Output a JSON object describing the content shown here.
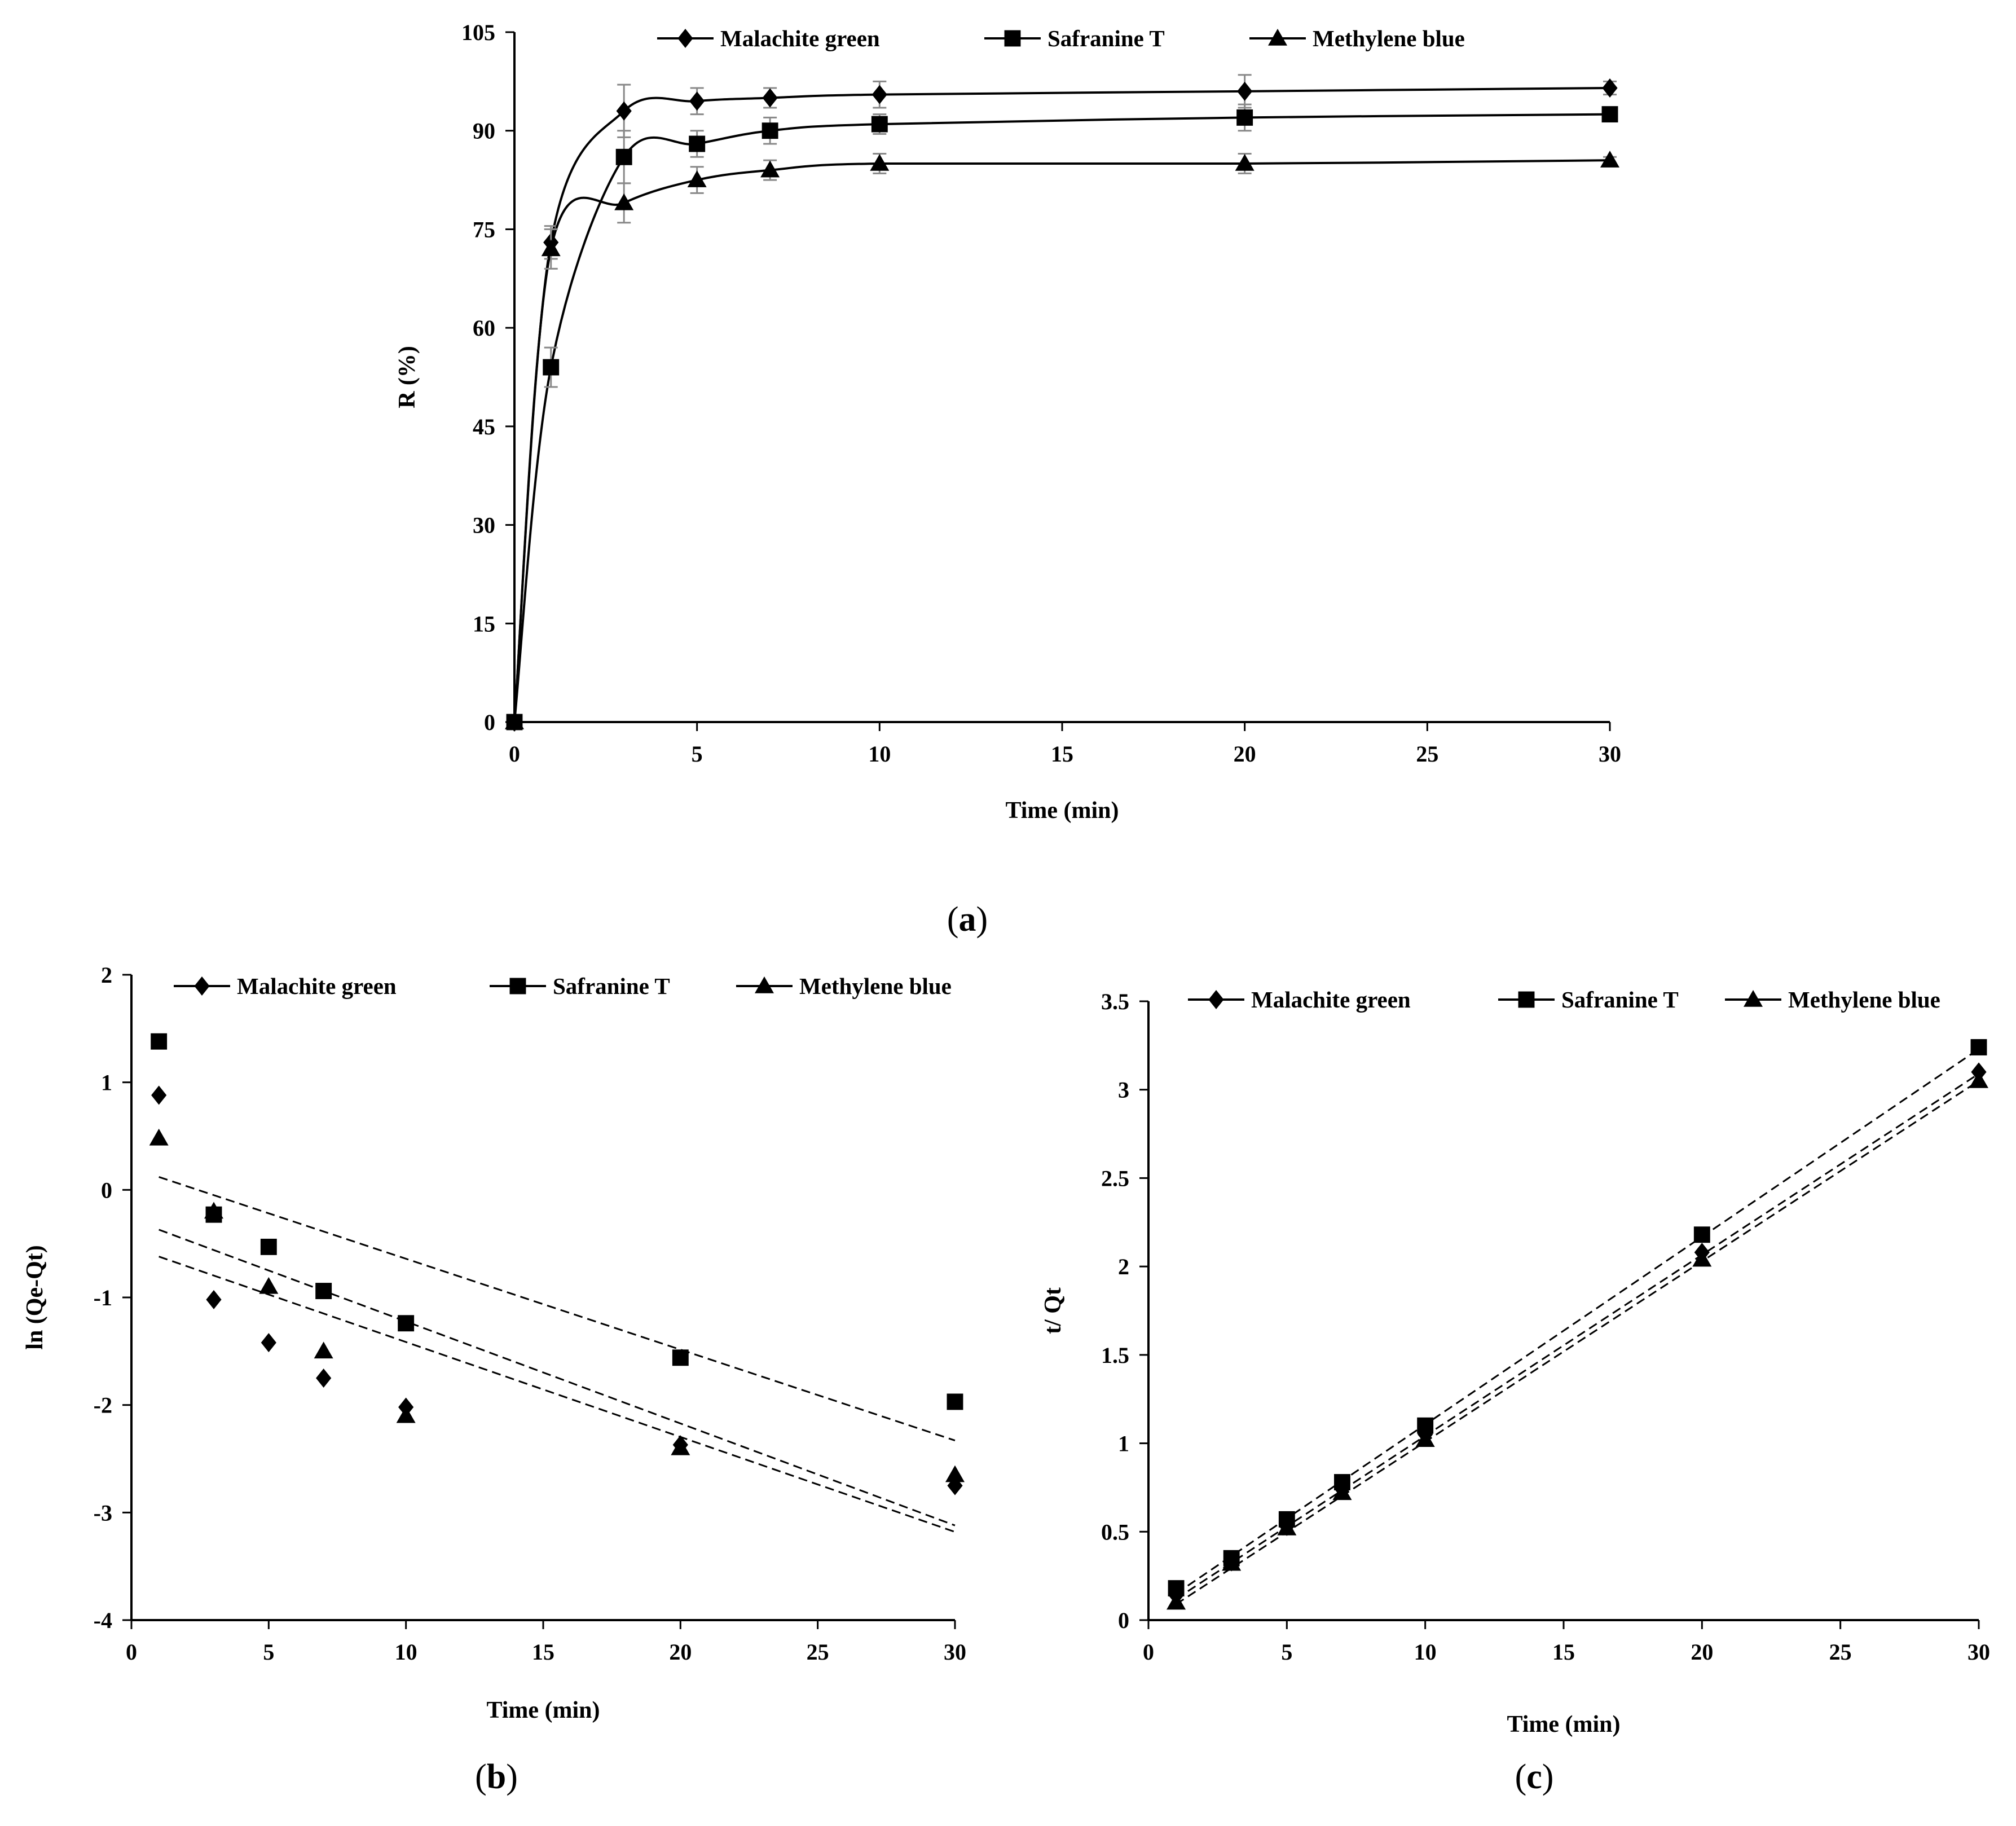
{
  "chart_data": [
    {
      "id": "a",
      "panel_label": "a",
      "type": "line",
      "xlabel": "Time (min)",
      "ylabel": "R (%)",
      "xlim": [
        0,
        30
      ],
      "ylim": [
        0,
        105
      ],
      "xticks": [
        0,
        5,
        10,
        15,
        20,
        25,
        30
      ],
      "yticks": [
        0,
        15,
        30,
        45,
        60,
        75,
        90,
        105
      ],
      "legend_position": "top",
      "error_bars": true,
      "x": [
        0,
        1,
        3,
        5,
        7,
        10,
        20,
        30
      ],
      "series": [
        {
          "name": "Malachite green",
          "marker": "diamond",
          "values": [
            0,
            73,
            93,
            94.5,
            95,
            95.5,
            96,
            96.5
          ],
          "errors": [
            0,
            2.5,
            4,
            2,
            1.5,
            2,
            2.5,
            1
          ]
        },
        {
          "name": "Safranine T",
          "marker": "square",
          "values": [
            0,
            54,
            86,
            88,
            90,
            91,
            92,
            92.5
          ],
          "errors": [
            0,
            3,
            4,
            2,
            2,
            1.5,
            2,
            1
          ]
        },
        {
          "name": "Methylene blue",
          "marker": "triangle",
          "values": [
            0,
            72,
            79,
            82.5,
            84,
            85,
            85,
            85.5
          ],
          "errors": [
            0,
            3,
            3,
            2,
            1.5,
            1.5,
            1.5,
            0.5
          ]
        }
      ]
    },
    {
      "id": "b",
      "panel_label": "b",
      "type": "scatter",
      "xlabel": "Time (min)",
      "ylabel": "ln (Qe-Qt)",
      "xlim": [
        0,
        30
      ],
      "ylim": [
        -4,
        2
      ],
      "xticks": [
        0,
        5,
        10,
        15,
        20,
        25,
        30
      ],
      "yticks": [
        -4,
        -3,
        -2,
        -1,
        0,
        1,
        2
      ],
      "legend_position": "top",
      "x": [
        1,
        3,
        5,
        7,
        10,
        20,
        30
      ],
      "series": [
        {
          "name": "Malachite green",
          "marker": "diamond",
          "values": [
            0.88,
            -1.02,
            -1.42,
            -1.75,
            -2.02,
            -2.37,
            -2.75
          ],
          "fit": [
            [
              1,
              -0.62
            ],
            [
              30,
              -3.18
            ]
          ]
        },
        {
          "name": "Safranine T",
          "marker": "square",
          "values": [
            1.38,
            -0.23,
            -0.53,
            -0.94,
            -1.24,
            -1.56,
            -1.97
          ],
          "fit": [
            [
              1,
              0.12
            ],
            [
              30,
              -2.33
            ]
          ]
        },
        {
          "name": "Methylene blue",
          "marker": "triangle",
          "values": [
            0.48,
            -0.2,
            -0.9,
            -1.5,
            -2.1,
            -2.4,
            -2.65
          ],
          "fit": [
            [
              1,
              -0.37
            ],
            [
              30,
              -3.12
            ]
          ]
        }
      ]
    },
    {
      "id": "c",
      "panel_label": "c",
      "type": "scatter",
      "xlabel": "Time (min)",
      "ylabel": "t/ Qt",
      "xlim": [
        0,
        30
      ],
      "ylim": [
        0,
        3.5
      ],
      "xticks": [
        0,
        5,
        10,
        15,
        20,
        25,
        30
      ],
      "yticks": [
        0,
        0.5,
        1,
        1.5,
        2,
        2.5,
        3,
        3.5
      ],
      "ytick_labels": [
        "0",
        "0.5",
        "1",
        "1.5",
        "2",
        "2.5",
        "3",
        "3.5"
      ],
      "legend_position": "top",
      "x": [
        1,
        3,
        5,
        7,
        10,
        20,
        30
      ],
      "series": [
        {
          "name": "Malachite green",
          "marker": "diamond",
          "values": [
            0.14,
            0.33,
            0.53,
            0.74,
            1.05,
            2.08,
            3.1
          ],
          "fit": [
            [
              1,
              0.12
            ],
            [
              30,
              3.09
            ]
          ]
        },
        {
          "name": "Safranine T",
          "marker": "square",
          "values": [
            0.18,
            0.35,
            0.57,
            0.78,
            1.1,
            2.18,
            3.24
          ],
          "fit": [
            [
              1,
              0.15
            ],
            [
              30,
              3.23
            ]
          ]
        },
        {
          "name": "Methylene blue",
          "marker": "triangle",
          "values": [
            0.1,
            0.32,
            0.52,
            0.72,
            1.02,
            2.04,
            3.05
          ],
          "fit": [
            [
              1,
              0.09
            ],
            [
              30,
              3.05
            ]
          ]
        }
      ]
    }
  ]
}
